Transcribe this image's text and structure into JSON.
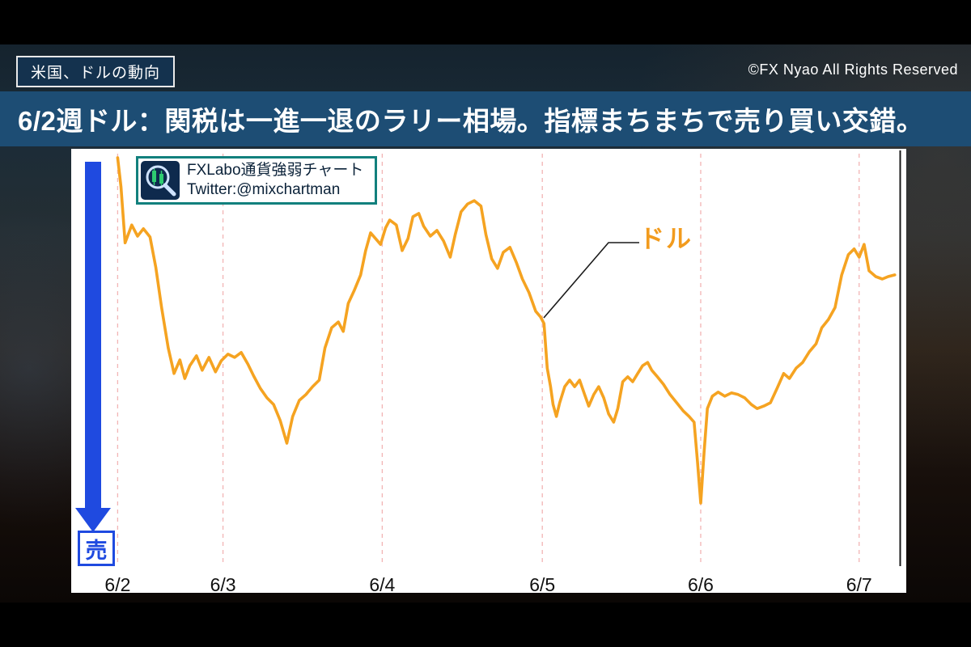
{
  "page": {
    "tag": "米国、ドルの動向",
    "copyright": "©FX Nyao All Rights Reserved",
    "banner": "6/2週ドル：関税は一進一退のラリー相場。指標まちまちで売り買い交錯。"
  },
  "badge": {
    "icon": "magnifier-candlestick-icon",
    "line1": "FXLabo通貨強弱チャート",
    "line2": "Twitter:@mixchartman"
  },
  "arrow": {
    "label": "売",
    "direction": "down",
    "color": "#1f4ae0"
  },
  "annotation": {
    "label": "ドル",
    "color": "#f29b1d",
    "pointer": [
      [
        702,
        116
      ],
      [
        664,
        116
      ],
      [
        584,
        209
      ]
    ]
  },
  "chart_data": {
    "type": "line",
    "title": "",
    "xlabel": "",
    "ylabel": "",
    "ylim": [
      0,
      100
    ],
    "y_axis_visible": false,
    "axis_right_color": "#1a1a1a",
    "grid": {
      "vertical_dashed": true,
      "color": "#f2b4b4"
    },
    "x_ticks": [
      {
        "label": "6/2",
        "pos": 0.056
      },
      {
        "label": "6/3",
        "pos": 0.183
      },
      {
        "label": "6/4",
        "pos": 0.375
      },
      {
        "label": "6/5",
        "pos": 0.568
      },
      {
        "label": "6/6",
        "pos": 0.759
      },
      {
        "label": "6/7",
        "pos": 0.95
      }
    ],
    "series": [
      {
        "name": "ドル",
        "color": "#F5A321",
        "x_unit": "fraction-of-plot-width",
        "y_unit": "relative-strength-0-100",
        "points": [
          [
            0.056,
            99.0
          ],
          [
            0.06,
            92.0
          ],
          [
            0.065,
            78.4
          ],
          [
            0.073,
            82.7
          ],
          [
            0.08,
            80.0
          ],
          [
            0.087,
            81.8
          ],
          [
            0.095,
            79.8
          ],
          [
            0.102,
            72.5
          ],
          [
            0.109,
            62.7
          ],
          [
            0.117,
            52.9
          ],
          [
            0.124,
            46.7
          ],
          [
            0.131,
            50.0
          ],
          [
            0.137,
            45.5
          ],
          [
            0.143,
            48.6
          ],
          [
            0.151,
            51.0
          ],
          [
            0.158,
            47.5
          ],
          [
            0.166,
            50.6
          ],
          [
            0.174,
            47.1
          ],
          [
            0.181,
            49.8
          ],
          [
            0.189,
            51.4
          ],
          [
            0.197,
            50.6
          ],
          [
            0.205,
            51.8
          ],
          [
            0.213,
            49.0
          ],
          [
            0.22,
            46.1
          ],
          [
            0.228,
            43.1
          ],
          [
            0.236,
            40.8
          ],
          [
            0.244,
            39.2
          ],
          [
            0.252,
            35.3
          ],
          [
            0.26,
            29.8
          ],
          [
            0.267,
            36.3
          ],
          [
            0.275,
            40.2
          ],
          [
            0.283,
            41.6
          ],
          [
            0.291,
            43.5
          ],
          [
            0.299,
            45.1
          ],
          [
            0.306,
            52.9
          ],
          [
            0.314,
            57.8
          ],
          [
            0.322,
            59.2
          ],
          [
            0.328,
            56.9
          ],
          [
            0.334,
            63.7
          ],
          [
            0.341,
            66.7
          ],
          [
            0.349,
            70.6
          ],
          [
            0.355,
            76.5
          ],
          [
            0.361,
            80.8
          ],
          [
            0.367,
            79.4
          ],
          [
            0.373,
            78.0
          ],
          [
            0.379,
            82.0
          ],
          [
            0.384,
            83.9
          ],
          [
            0.392,
            82.7
          ],
          [
            0.399,
            76.5
          ],
          [
            0.406,
            79.4
          ],
          [
            0.412,
            84.7
          ],
          [
            0.419,
            85.5
          ],
          [
            0.425,
            82.4
          ],
          [
            0.433,
            80.0
          ],
          [
            0.441,
            81.4
          ],
          [
            0.449,
            78.8
          ],
          [
            0.457,
            74.9
          ],
          [
            0.463,
            80.4
          ],
          [
            0.47,
            85.9
          ],
          [
            0.478,
            87.8
          ],
          [
            0.486,
            88.6
          ],
          [
            0.494,
            87.3
          ],
          [
            0.5,
            80.4
          ],
          [
            0.507,
            74.5
          ],
          [
            0.514,
            72.2
          ],
          [
            0.521,
            76.1
          ],
          [
            0.529,
            77.3
          ],
          [
            0.537,
            73.5
          ],
          [
            0.544,
            69.6
          ],
          [
            0.552,
            66.3
          ],
          [
            0.56,
            61.8
          ],
          [
            0.566,
            60.4
          ],
          [
            0.57,
            58.8
          ],
          [
            0.574,
            48.0
          ],
          [
            0.578,
            43.5
          ],
          [
            0.581,
            39.2
          ],
          [
            0.585,
            36.3
          ],
          [
            0.589,
            39.6
          ],
          [
            0.595,
            43.5
          ],
          [
            0.601,
            45.1
          ],
          [
            0.607,
            43.5
          ],
          [
            0.613,
            45.1
          ],
          [
            0.619,
            41.6
          ],
          [
            0.624,
            38.8
          ],
          [
            0.63,
            41.6
          ],
          [
            0.636,
            43.5
          ],
          [
            0.642,
            40.8
          ],
          [
            0.648,
            36.9
          ],
          [
            0.654,
            34.9
          ],
          [
            0.659,
            38.2
          ],
          [
            0.665,
            44.7
          ],
          [
            0.671,
            45.9
          ],
          [
            0.677,
            44.7
          ],
          [
            0.683,
            46.7
          ],
          [
            0.689,
            48.6
          ],
          [
            0.695,
            49.4
          ],
          [
            0.7,
            47.5
          ],
          [
            0.706,
            46.1
          ],
          [
            0.714,
            44.1
          ],
          [
            0.722,
            41.6
          ],
          [
            0.73,
            39.6
          ],
          [
            0.738,
            37.6
          ],
          [
            0.745,
            36.3
          ],
          [
            0.751,
            34.9
          ],
          [
            0.755,
            25.5
          ],
          [
            0.759,
            15.3
          ],
          [
            0.763,
            27.5
          ],
          [
            0.767,
            38.2
          ],
          [
            0.773,
            41.2
          ],
          [
            0.78,
            42.2
          ],
          [
            0.788,
            41.2
          ],
          [
            0.796,
            42.0
          ],
          [
            0.804,
            41.6
          ],
          [
            0.812,
            40.8
          ],
          [
            0.82,
            39.2
          ],
          [
            0.827,
            38.2
          ],
          [
            0.835,
            38.8
          ],
          [
            0.843,
            39.6
          ],
          [
            0.851,
            43.1
          ],
          [
            0.859,
            46.7
          ],
          [
            0.866,
            45.5
          ],
          [
            0.874,
            48.0
          ],
          [
            0.882,
            49.4
          ],
          [
            0.89,
            52.0
          ],
          [
            0.898,
            53.9
          ],
          [
            0.905,
            57.8
          ],
          [
            0.913,
            59.8
          ],
          [
            0.921,
            62.7
          ],
          [
            0.929,
            70.6
          ],
          [
            0.937,
            75.5
          ],
          [
            0.944,
            76.9
          ],
          [
            0.95,
            74.9
          ],
          [
            0.956,
            78.0
          ],
          [
            0.962,
            71.6
          ],
          [
            0.97,
            70.2
          ],
          [
            0.978,
            69.6
          ],
          [
            0.985,
            70.2
          ],
          [
            0.993,
            70.6
          ]
        ]
      }
    ]
  }
}
